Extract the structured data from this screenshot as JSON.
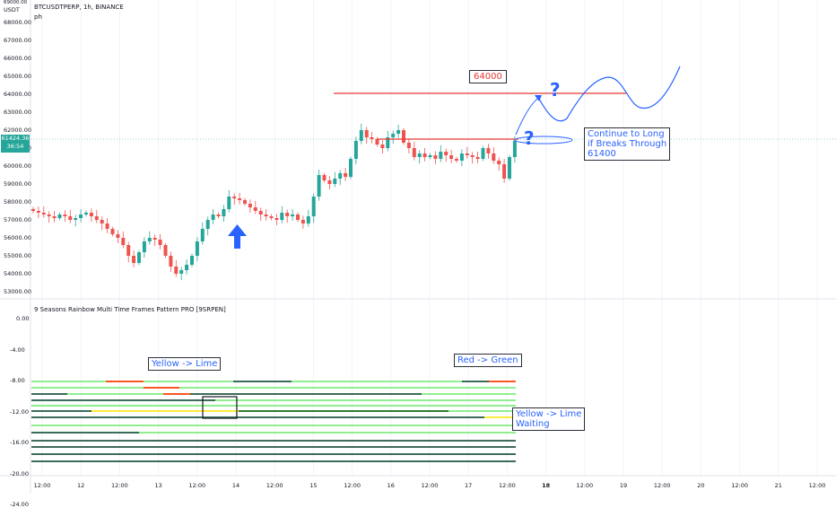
{
  "header": {
    "symbol_line": "BTCUSDTPERP, 1h, BINANCE",
    "sub_line": "ph",
    "currency": "USDT"
  },
  "price_axis": {
    "labels": [
      "68000.00",
      "67000.00",
      "66000.00",
      "65000.00",
      "64000.00",
      "63000.00",
      "62000.00",
      "61000.00",
      "60000.00",
      "59000.00",
      "58000.00",
      "57000.00",
      "56000.00",
      "55000.00",
      "54000.00",
      "53000.00"
    ],
    "top_label": "69000.00",
    "current_price": "61424.36",
    "countdown": "36:54"
  },
  "indicator": {
    "title": "9 Seasons Rainbow Multi Time Frames Pattern PRO [9SRPEN]",
    "axis_labels": [
      "0.00",
      "-4.00",
      "-8.00",
      "-12.00",
      "-16.00",
      "-20.00",
      "-24.00"
    ]
  },
  "time_axis": {
    "labels": [
      {
        "t": "12:00",
        "b": false
      },
      {
        "t": "12",
        "b": false
      },
      {
        "t": "12:00",
        "b": false
      },
      {
        "t": "13",
        "b": false
      },
      {
        "t": "12:00",
        "b": false
      },
      {
        "t": "14",
        "b": false
      },
      {
        "t": "12:00",
        "b": false
      },
      {
        "t": "15",
        "b": false
      },
      {
        "t": "12:00",
        "b": false
      },
      {
        "t": "16",
        "b": false
      },
      {
        "t": "12:00",
        "b": false
      },
      {
        "t": "17",
        "b": false
      },
      {
        "t": "12:00",
        "b": false
      },
      {
        "t": "18",
        "b": true
      },
      {
        "t": "12:00",
        "b": false
      },
      {
        "t": "19",
        "b": false
      },
      {
        "t": "12:00",
        "b": false
      },
      {
        "t": "20",
        "b": false
      },
      {
        "t": "12:00",
        "b": false
      },
      {
        "t": "21",
        "b": false
      },
      {
        "t": "12:00",
        "b": false
      }
    ]
  },
  "annotations": {
    "target_label": "64000",
    "long_note_l1": "Continue to Long",
    "long_note_l2": "if Breaks Through",
    "long_note_l3": "61400",
    "yellow_lime": "Yellow -> Lime",
    "red_green": "Red -> Green",
    "yellow_lime_waiting_l1": "Yellow -> Lime",
    "yellow_lime_waiting_l2": "Waiting",
    "question": "?"
  },
  "colors": {
    "up": "#26a69a",
    "down": "#ef5350",
    "accent": "#2962ff",
    "resistance": "#e53935",
    "lime": "#90ee90",
    "green": "#2e7d32",
    "yellow": "#ffeb3b",
    "red": "#ff5722",
    "dark_teal": "#3d6b5a"
  },
  "chart_data": {
    "type": "candlestick",
    "symbol": "BTCUSDTPERP",
    "interval": "1h",
    "exchange": "BINANCE",
    "ylim": [
      53000,
      69000
    ],
    "closes": [
      57500,
      57400,
      57300,
      57200,
      57100,
      57300,
      57200,
      57000,
      57100,
      57300,
      57400,
      57200,
      57000,
      56800,
      56500,
      56200,
      56000,
      55600,
      55000,
      54600,
      55200,
      55800,
      56000,
      55900,
      55600,
      55000,
      54400,
      54000,
      54200,
      54500,
      55000,
      55800,
      56500,
      57000,
      57300,
      57200,
      57600,
      58300,
      58200,
      58100,
      57900,
      57700,
      57500,
      57300,
      57200,
      57100,
      57000,
      57400,
      57200,
      57300,
      57000,
      56800,
      57200,
      58300,
      59500,
      59200,
      59000,
      59300,
      59600,
      59400,
      60400,
      61400,
      62000,
      61600,
      61500,
      61200,
      61000,
      61600,
      61800,
      62000,
      61300,
      61000,
      60500,
      60700,
      60500,
      60600,
      60400,
      60800,
      60600,
      60400,
      60300,
      60700,
      60600,
      60500,
      60400,
      61000,
      60700,
      60300,
      60100,
      59300,
      60500,
      61424
    ],
    "resistance_levels": [
      64000,
      61400
    ]
  }
}
